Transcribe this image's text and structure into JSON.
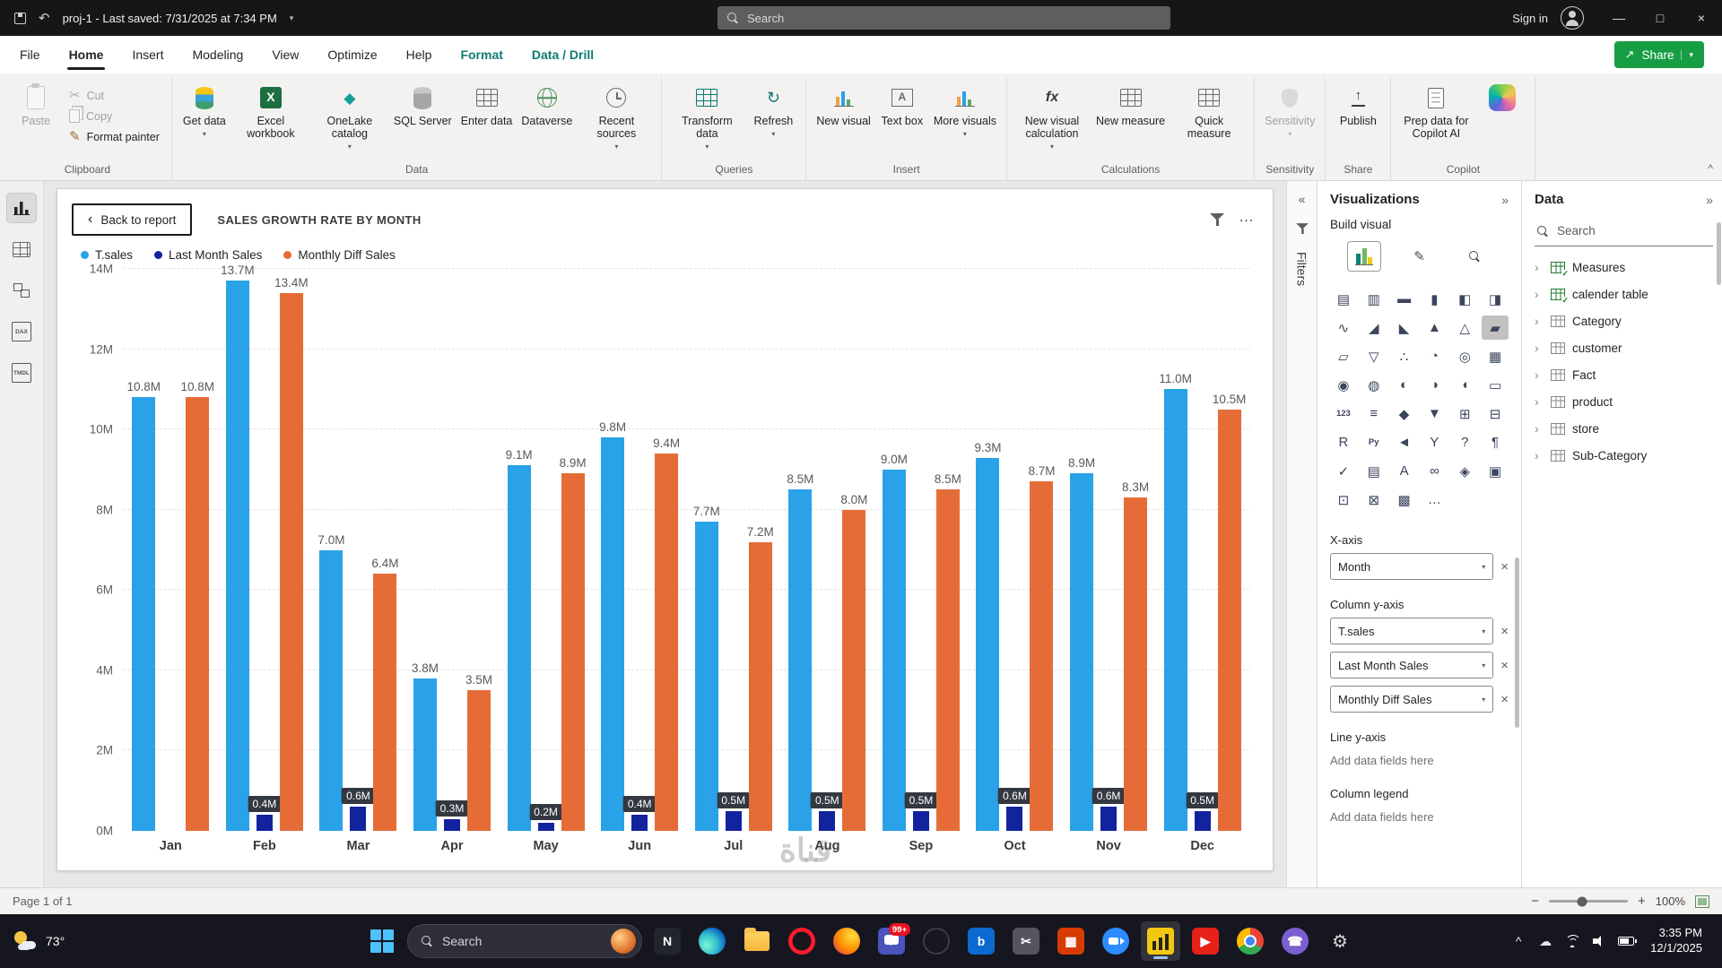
{
  "titlebar": {
    "project": "proj-1 - Last saved: 7/31/2025 at 7:34 PM",
    "search_placeholder": "Search",
    "sign_in": "Sign in"
  },
  "menubar": {
    "tabs": [
      {
        "label": "File"
      },
      {
        "label": "Home",
        "active": true
      },
      {
        "label": "Insert"
      },
      {
        "label": "Modeling"
      },
      {
        "label": "View"
      },
      {
        "label": "Optimize"
      },
      {
        "label": "Help"
      },
      {
        "label": "Format",
        "contextual": true
      },
      {
        "label": "Data / Drill",
        "contextual": true
      }
    ],
    "share": "Share"
  },
  "ribbon": {
    "groups": [
      {
        "caption": "Clipboard",
        "items": [
          {
            "label": "Paste",
            "icon": "paste",
            "disabled": true
          },
          {
            "label": "Cut",
            "icon": "cut",
            "small": true,
            "disabled": true
          },
          {
            "label": "Copy",
            "icon": "copy",
            "small": true,
            "disabled": true
          },
          {
            "label": "Format painter",
            "icon": "brush",
            "small": true
          }
        ]
      },
      {
        "caption": "Data",
        "items": [
          {
            "label": "Get data",
            "icon": "getdata",
            "caret": true
          },
          {
            "label": "Excel workbook",
            "icon": "excel"
          },
          {
            "label": "OneLake catalog",
            "icon": "onelake",
            "caret": true
          },
          {
            "label": "SQL Server",
            "icon": "sql"
          },
          {
            "label": "Enter data",
            "icon": "enterdata"
          },
          {
            "label": "Dataverse",
            "icon": "dataverse"
          },
          {
            "label": "Recent sources",
            "icon": "recent",
            "caret": true
          }
        ]
      },
      {
        "caption": "Queries",
        "items": [
          {
            "label": "Transform data",
            "icon": "transform",
            "caret": true
          },
          {
            "label": "Refresh",
            "icon": "refresh",
            "caret": true
          }
        ]
      },
      {
        "caption": "Insert",
        "items": [
          {
            "label": "New visual",
            "icon": "newvisual"
          },
          {
            "label": "Text box",
            "icon": "textbox"
          },
          {
            "label": "More visuals",
            "icon": "morevisuals",
            "caret": true
          }
        ]
      },
      {
        "caption": "Calculations",
        "items": [
          {
            "label": "New visual calculation",
            "icon": "fxcalc",
            "caret": true
          },
          {
            "label": "New measure",
            "icon": "measure"
          },
          {
            "label": "Quick measure",
            "icon": "quickmeasure"
          }
        ]
      },
      {
        "caption": "Sensitivity",
        "items": [
          {
            "label": "Sensitivity",
            "icon": "sensitivity",
            "caret": true,
            "disabled": true
          }
        ]
      },
      {
        "caption": "Share",
        "items": [
          {
            "label": "Publish",
            "icon": "publish"
          }
        ]
      },
      {
        "caption": "Copilot",
        "items": [
          {
            "label": "Prep data for Copilot AI",
            "icon": "prepdoc"
          },
          {
            "label": "Copilot",
            "icon": "copilot",
            "icon_only": true
          }
        ]
      }
    ]
  },
  "left_rail": {
    "items": [
      {
        "name": "report-view-button",
        "kind": "report",
        "active": true
      },
      {
        "name": "table-view-button",
        "kind": "table"
      },
      {
        "name": "model-view-button",
        "kind": "model"
      },
      {
        "name": "dax-query-view-button",
        "kind": "doc",
        "glyph": "DAX"
      },
      {
        "name": "tmdl-view-button",
        "kind": "doc",
        "glyph": "TMDL"
      }
    ]
  },
  "canvas": {
    "back_label": "Back to report",
    "title": "SALES GROWTH RATE BY MONTH"
  },
  "chart_data": {
    "type": "bar",
    "title": "SALES GROWTH RATE BY MONTH",
    "categories": [
      "Jan",
      "Feb",
      "Mar",
      "Apr",
      "May",
      "Jun",
      "Jul",
      "Aug",
      "Sep",
      "Oct",
      "Nov",
      "Dec"
    ],
    "series": [
      {
        "name": "T.sales",
        "color": "#29A2E8",
        "values": [
          10.8,
          13.7,
          7.0,
          3.8,
          9.1,
          9.8,
          7.7,
          8.5,
          9.0,
          9.3,
          8.9,
          11.0
        ]
      },
      {
        "name": "Last Month Sales",
        "color": "#12239E",
        "label_style": "callout",
        "values": [
          null,
          0.4,
          0.6,
          0.3,
          0.2,
          0.4,
          0.5,
          0.5,
          0.5,
          0.6,
          0.6,
          0.5
        ]
      },
      {
        "name": "Monthly Diff Sales",
        "color": "#E66C37",
        "values": [
          10.8,
          13.4,
          6.4,
          3.5,
          8.9,
          9.4,
          7.2,
          8.0,
          8.5,
          8.7,
          8.3,
          10.5
        ]
      }
    ],
    "ylim": [
      0,
      14
    ],
    "ytick_step": 2,
    "ytick_suffix": "M",
    "value_label_suffix": "M",
    "grid": true,
    "legend_position": "top-left"
  },
  "filters": {
    "label": "Filters"
  },
  "visualizations": {
    "title": "Visualizations",
    "subtitle": "Build visual",
    "selected_index": 11,
    "visual_icons": [
      {
        "name": "stacked-bar-chart",
        "glyph": "▤"
      },
      {
        "name": "stacked-column-chart",
        "glyph": "▥"
      },
      {
        "name": "clustered-bar-chart",
        "glyph": "▬"
      },
      {
        "name": "clustered-column-chart",
        "glyph": "▮"
      },
      {
        "name": "100-stacked-bar-chart",
        "glyph": "◧"
      },
      {
        "name": "100-stacked-column-chart",
        "glyph": "◨"
      },
      {
        "name": "line-chart",
        "glyph": "∿"
      },
      {
        "name": "area-chart",
        "glyph": "◢"
      },
      {
        "name": "stacked-area-chart",
        "glyph": "◣"
      },
      {
        "name": "line-and-stacked-column-chart",
        "glyph": "▲"
      },
      {
        "name": "line-and-clustered-column-chart",
        "glyph": "△"
      },
      {
        "name": "ribbon-chart",
        "glyph": "▰"
      },
      {
        "name": "waterfall-chart",
        "glyph": "▱"
      },
      {
        "name": "funnel-chart",
        "glyph": "▽"
      },
      {
        "name": "scatter-chart",
        "glyph": "∴"
      },
      {
        "name": "pie-chart",
        "glyph": "◔"
      },
      {
        "name": "donut-chart",
        "glyph": "◎"
      },
      {
        "name": "treemap",
        "glyph": "▦"
      },
      {
        "name": "map",
        "glyph": "◉"
      },
      {
        "name": "filled-map",
        "glyph": "◍"
      },
      {
        "name": "shape-map",
        "glyph": "◐"
      },
      {
        "name": "azure-map",
        "glyph": "◑"
      },
      {
        "name": "gauge",
        "glyph": "◖"
      },
      {
        "name": "card",
        "glyph": "▭"
      },
      {
        "name": "numeric-card",
        "glyph": "123"
      },
      {
        "name": "multi-row-card",
        "glyph": "≡"
      },
      {
        "name": "kpi",
        "glyph": "◆"
      },
      {
        "name": "slicer",
        "glyph": "▼"
      },
      {
        "name": "table",
        "glyph": "⊞"
      },
      {
        "name": "matrix",
        "glyph": "⊟"
      },
      {
        "name": "r-script-visual",
        "glyph": "R"
      },
      {
        "name": "python-visual",
        "glyph": "Py"
      },
      {
        "name": "key-influencers",
        "glyph": "◄"
      },
      {
        "name": "decomposition-tree",
        "glyph": "Y"
      },
      {
        "name": "qa-visual",
        "glyph": "?"
      },
      {
        "name": "smart-narrative",
        "glyph": "¶"
      },
      {
        "name": "metrics",
        "glyph": "✓"
      },
      {
        "name": "paginated-report",
        "glyph": "▤"
      },
      {
        "name": "power-apps",
        "glyph": "A"
      },
      {
        "name": "power-automate",
        "glyph": "∞"
      },
      {
        "name": "arcgis-map",
        "glyph": "◈"
      },
      {
        "name": "button-slicer",
        "glyph": "▣"
      },
      {
        "name": "text-slicer",
        "glyph": "⊡"
      },
      {
        "name": "chiclet-slicer",
        "glyph": "⊠"
      },
      {
        "name": "custom-visual",
        "glyph": "▩"
      }
    ],
    "more_icon": {
      "name": "more-visual-options",
      "glyph": "…"
    },
    "fields": [
      {
        "label": "X-axis",
        "pills": [
          "Month"
        ]
      },
      {
        "label": "Column y-axis",
        "pills": [
          "T.sales",
          "Last Month Sales",
          "Monthly Diff Sales"
        ]
      },
      {
        "label": "Line y-axis",
        "placeholder": "Add data fields here"
      },
      {
        "label": "Column legend",
        "placeholder": "Add data fields here"
      }
    ]
  },
  "data_panel": {
    "title": "Data",
    "search_placeholder": "Search",
    "items": [
      {
        "label": "Measures",
        "checked": true
      },
      {
        "label": "calender table",
        "checked": true
      },
      {
        "label": "Category"
      },
      {
        "label": "customer"
      },
      {
        "label": "Fact"
      },
      {
        "label": "product"
      },
      {
        "label": "store"
      },
      {
        "label": "Sub-Category"
      }
    ]
  },
  "statusbar": {
    "page": "Page 1 of 1",
    "zoom": "100%"
  },
  "taskbar": {
    "weather": "73°",
    "search_label": "Search",
    "time": "3:35 PM",
    "date": "12/1/2025",
    "apps": [
      {
        "name": "start-button",
        "kind": "start"
      },
      {
        "name": "taskbar-search",
        "kind": "searchpill"
      },
      {
        "name": "notepad-app",
        "kind": "sq",
        "bg": "#23252e",
        "glyph": "N"
      },
      {
        "name": "microsoft-edge",
        "kind": "edge"
      },
      {
        "name": "file-explorer",
        "kind": "folder"
      },
      {
        "name": "opera-browser",
        "kind": "opera"
      },
      {
        "name": "firefox-browser",
        "kind": "firefox"
      },
      {
        "name": "teams-chat",
        "kind": "chat",
        "badge": "99+"
      },
      {
        "name": "opera-gx",
        "kind": "gx"
      },
      {
        "name": "bing-app",
        "kind": "sq",
        "bg": "#0b6ad0",
        "glyph": "b"
      },
      {
        "name": "snipping-tool",
        "kind": "sq",
        "bg": "#55555f",
        "glyph": "✂"
      },
      {
        "name": "office-app",
        "kind": "sq",
        "bg": "#d83b01",
        "glyph": "▦"
      },
      {
        "name": "zoom-app",
        "kind": "zoom"
      },
      {
        "name": "power-bi-desktop",
        "kind": "powerbi",
        "active": true
      },
      {
        "name": "youtube-app",
        "kind": "sq",
        "bg": "#e62117",
        "glyph": "▶"
      },
      {
        "name": "google-chrome",
        "kind": "chrome"
      },
      {
        "name": "viber-app",
        "kind": "ci",
        "bg": "#7a5fd0",
        "glyph": "☎"
      },
      {
        "name": "settings-app",
        "kind": "gear"
      }
    ],
    "tray": [
      {
        "name": "hidden-icons-chevron-icon",
        "kind": "glyph",
        "glyph": "^"
      },
      {
        "name": "onedrive-icon",
        "kind": "glyph",
        "glyph": "☁"
      },
      {
        "name": "wifi-icon",
        "kind": "wifi"
      },
      {
        "name": "volume-icon",
        "kind": "volume"
      },
      {
        "name": "battery-icon",
        "kind": "battery"
      }
    ]
  },
  "watermark": "قناة"
}
